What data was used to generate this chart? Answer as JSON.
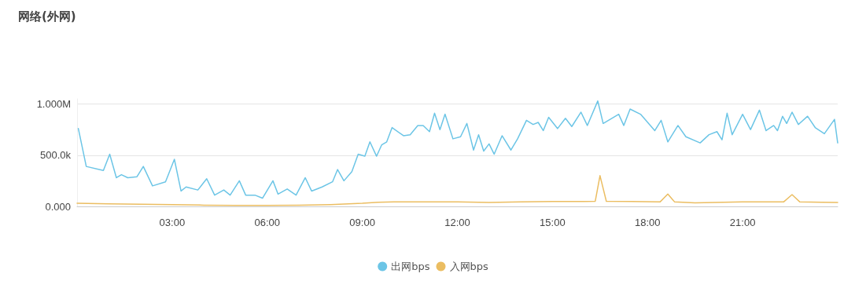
{
  "chart_data": {
    "type": "line",
    "title": "网络(外网)",
    "xlim": [
      0,
      24
    ],
    "xticks": [
      {
        "value": 3,
        "label": "03:00"
      },
      {
        "value": 6,
        "label": "06:00"
      },
      {
        "value": 9,
        "label": "09:00"
      },
      {
        "value": 12,
        "label": "12:00"
      },
      {
        "value": 15,
        "label": "15:00"
      },
      {
        "value": 18,
        "label": "18:00"
      },
      {
        "value": 21,
        "label": "21:00"
      }
    ],
    "ylim": [
      0,
      1050000
    ],
    "yticks": [
      {
        "value": 0,
        "label": "0.000"
      },
      {
        "value": 500000,
        "label": "500.0k"
      },
      {
        "value": 1000000,
        "label": "1.000M"
      }
    ],
    "grid": "y",
    "legend": "bottom",
    "marker": "none",
    "line_style": "solid",
    "series": [
      {
        "name": "出网bps",
        "color": "#6cc5e6",
        "x": [
          0.04,
          0.29,
          0.83,
          1.03,
          1.24,
          1.4,
          1.6,
          1.89,
          2.09,
          2.38,
          2.79,
          3.07,
          3.28,
          3.44,
          3.81,
          4.09,
          4.34,
          4.63,
          4.83,
          5.12,
          5.32,
          5.61,
          5.85,
          6.18,
          6.34,
          6.63,
          6.91,
          7.2,
          7.4,
          7.73,
          8.06,
          8.22,
          8.42,
          8.67,
          8.87,
          9.08,
          9.24,
          9.45,
          9.61,
          9.77,
          9.94,
          10.3,
          10.51,
          10.75,
          10.92,
          11.12,
          11.28,
          11.45,
          11.61,
          11.86,
          12.1,
          12.3,
          12.51,
          12.67,
          12.83,
          13.0,
          13.16,
          13.41,
          13.69,
          13.9,
          14.18,
          14.39,
          14.55,
          14.71,
          14.88,
          15.16,
          15.41,
          15.61,
          15.9,
          16.1,
          16.43,
          16.6,
          17.09,
          17.25,
          17.45,
          17.78,
          18.23,
          18.43,
          18.64,
          18.96,
          19.21,
          19.66,
          19.94,
          20.19,
          20.35,
          20.51,
          20.67,
          21.0,
          21.25,
          21.53,
          21.74,
          21.98,
          22.1,
          22.26,
          22.39,
          22.56,
          22.76,
          23.05,
          23.29,
          23.58,
          23.9,
          24.0
        ],
        "values": [
          760000,
          390000,
          350000,
          510000,
          280000,
          310000,
          280000,
          290000,
          390000,
          200000,
          240000,
          460000,
          150000,
          190000,
          160000,
          270000,
          110000,
          160000,
          110000,
          250000,
          110000,
          110000,
          80000,
          250000,
          120000,
          170000,
          110000,
          280000,
          150000,
          190000,
          240000,
          360000,
          250000,
          340000,
          510000,
          490000,
          630000,
          490000,
          600000,
          630000,
          770000,
          690000,
          700000,
          790000,
          790000,
          730000,
          910000,
          750000,
          900000,
          660000,
          680000,
          810000,
          550000,
          700000,
          540000,
          610000,
          510000,
          690000,
          550000,
          660000,
          840000,
          800000,
          820000,
          740000,
          870000,
          760000,
          860000,
          780000,
          920000,
          790000,
          1030000,
          810000,
          900000,
          790000,
          950000,
          900000,
          740000,
          840000,
          630000,
          790000,
          680000,
          620000,
          700000,
          730000,
          650000,
          910000,
          700000,
          900000,
          750000,
          940000,
          740000,
          790000,
          740000,
          880000,
          810000,
          920000,
          800000,
          880000,
          770000,
          710000,
          850000,
          620000
        ]
      },
      {
        "name": "入网bps",
        "color": "#ebbd61",
        "x": [
          0,
          1,
          2,
          3,
          4,
          5,
          6,
          7,
          8,
          9,
          9.5,
          10,
          11,
          12,
          13,
          14,
          15,
          16,
          16.35,
          16.5,
          16.7,
          17.5,
          18.4,
          18.64,
          18.85,
          19.5,
          21,
          22.3,
          22.56,
          22.8,
          23.5,
          24
        ],
        "values": [
          30000,
          25000,
          22000,
          18000,
          12000,
          10000,
          10000,
          12000,
          18000,
          30000,
          40000,
          45000,
          45000,
          45000,
          38000,
          45000,
          48000,
          48000,
          50000,
          300000,
          50000,
          48000,
          45000,
          120000,
          45000,
          35000,
          45000,
          45000,
          115000,
          45000,
          40000,
          38000
        ]
      }
    ]
  }
}
